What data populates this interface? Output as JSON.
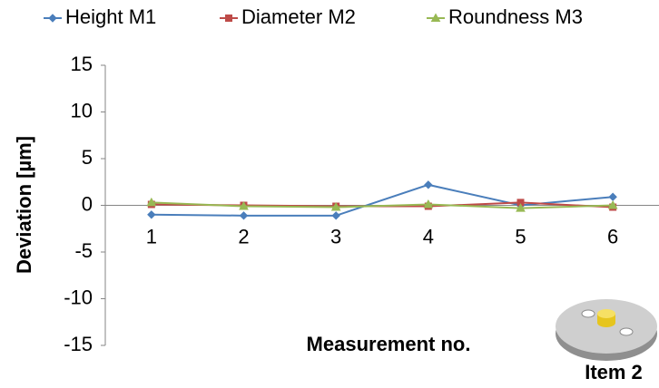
{
  "chart_data": {
    "type": "line",
    "y_label": "Deviation [µm]",
    "x_label": "Measurement no.",
    "annotation": "Item 2",
    "categories": [
      "1",
      "2",
      "3",
      "4",
      "5",
      "6"
    ],
    "series": [
      {
        "name": "Height M1",
        "color": "#4a7ebb",
        "marker": "diamond",
        "values": [
          -1,
          -1.1,
          -1.1,
          2.2,
          0,
          0.9
        ]
      },
      {
        "name": "Diameter M2",
        "color": "#be4b48",
        "marker": "square",
        "values": [
          0.1,
          0,
          -0.1,
          -0.1,
          0.3,
          -0.2
        ]
      },
      {
        "name": "Roundness M3",
        "color": "#98b954",
        "marker": "triangle",
        "values": [
          0.3,
          -0.1,
          -0.2,
          0.1,
          -0.3,
          0
        ]
      }
    ],
    "ylim": [
      -15,
      15
    ],
    "yticks": [
      -15,
      -10,
      -5,
      0,
      5,
      10,
      15
    ],
    "grid": false,
    "legend": "top"
  }
}
